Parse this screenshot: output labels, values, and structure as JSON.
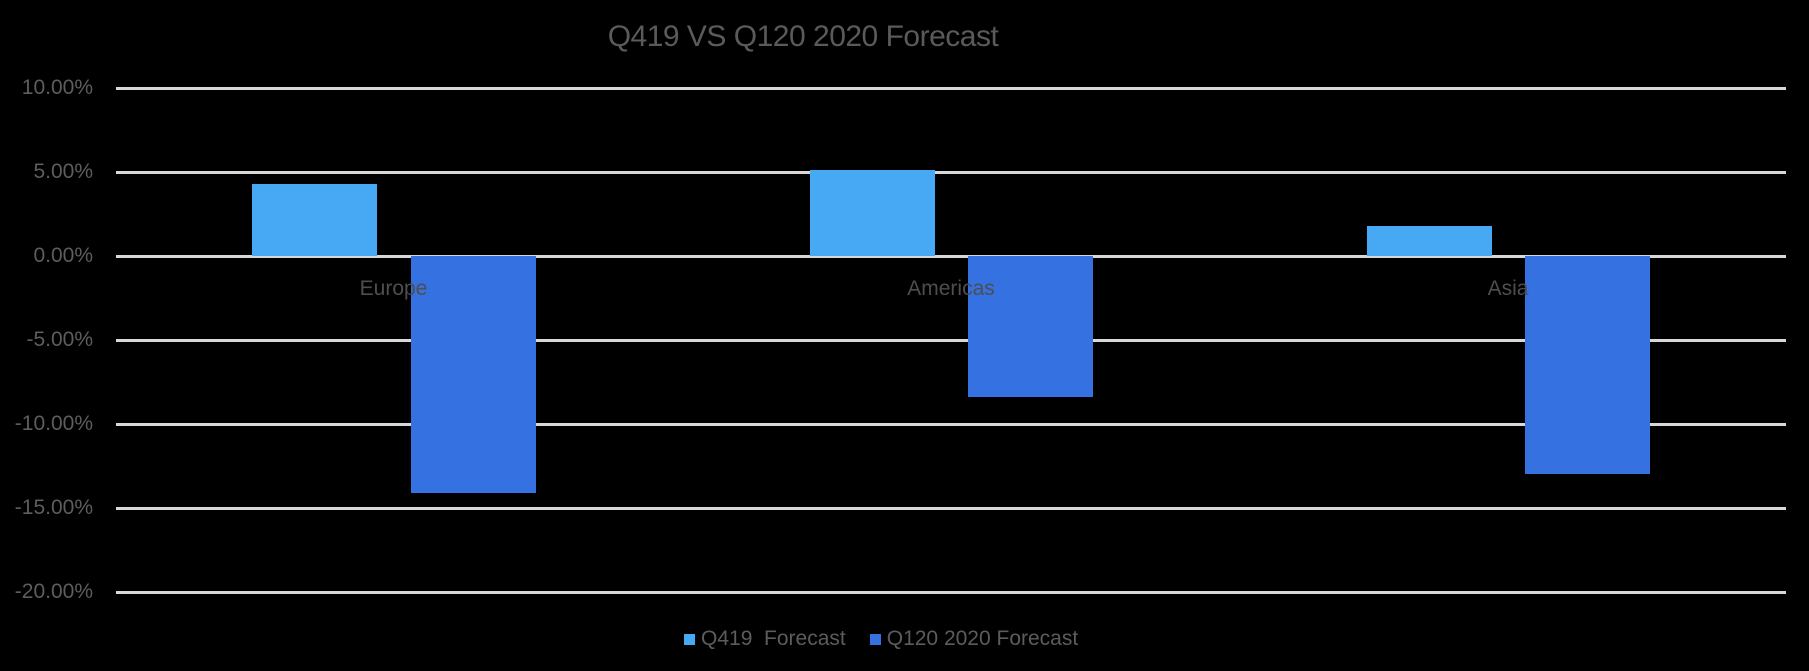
{
  "page": {
    "background": "#000000"
  },
  "chart_data": {
    "type": "bar",
    "title": "Q419 VS Q120 2020 Forecast",
    "categories": [
      "Europe",
      "Americas",
      "Asia"
    ],
    "series": [
      {
        "name": "Q419  Forecast",
        "color": "#47a8f4",
        "values": [
          4.3,
          5.1,
          1.8
        ]
      },
      {
        "name": "Q120 2020 Forecast",
        "color": "#3571e0",
        "values": [
          -14.1,
          -8.4,
          -13.0
        ]
      }
    ],
    "xlabel": "",
    "ylabel": "",
    "y_axis": {
      "tick_labels": [
        "10.00%",
        "5.00%",
        "0.00%",
        "-5.00%",
        "-10.00%",
        "-15.00%",
        "-20.00%"
      ],
      "tick_values": [
        10,
        5,
        0,
        -5,
        -10,
        -15,
        -20
      ],
      "min": -20,
      "max": 10,
      "format": "percent"
    },
    "grid": true,
    "legend_position": "bottom",
    "colors": {
      "background": "#000000",
      "gridline": "#d8d8d8",
      "title_text": "#5a5a5a",
      "axis_tick_text": "#5d5d5d",
      "category_text": "#4e4e4e",
      "legend_text": "#5c5c5c"
    }
  }
}
